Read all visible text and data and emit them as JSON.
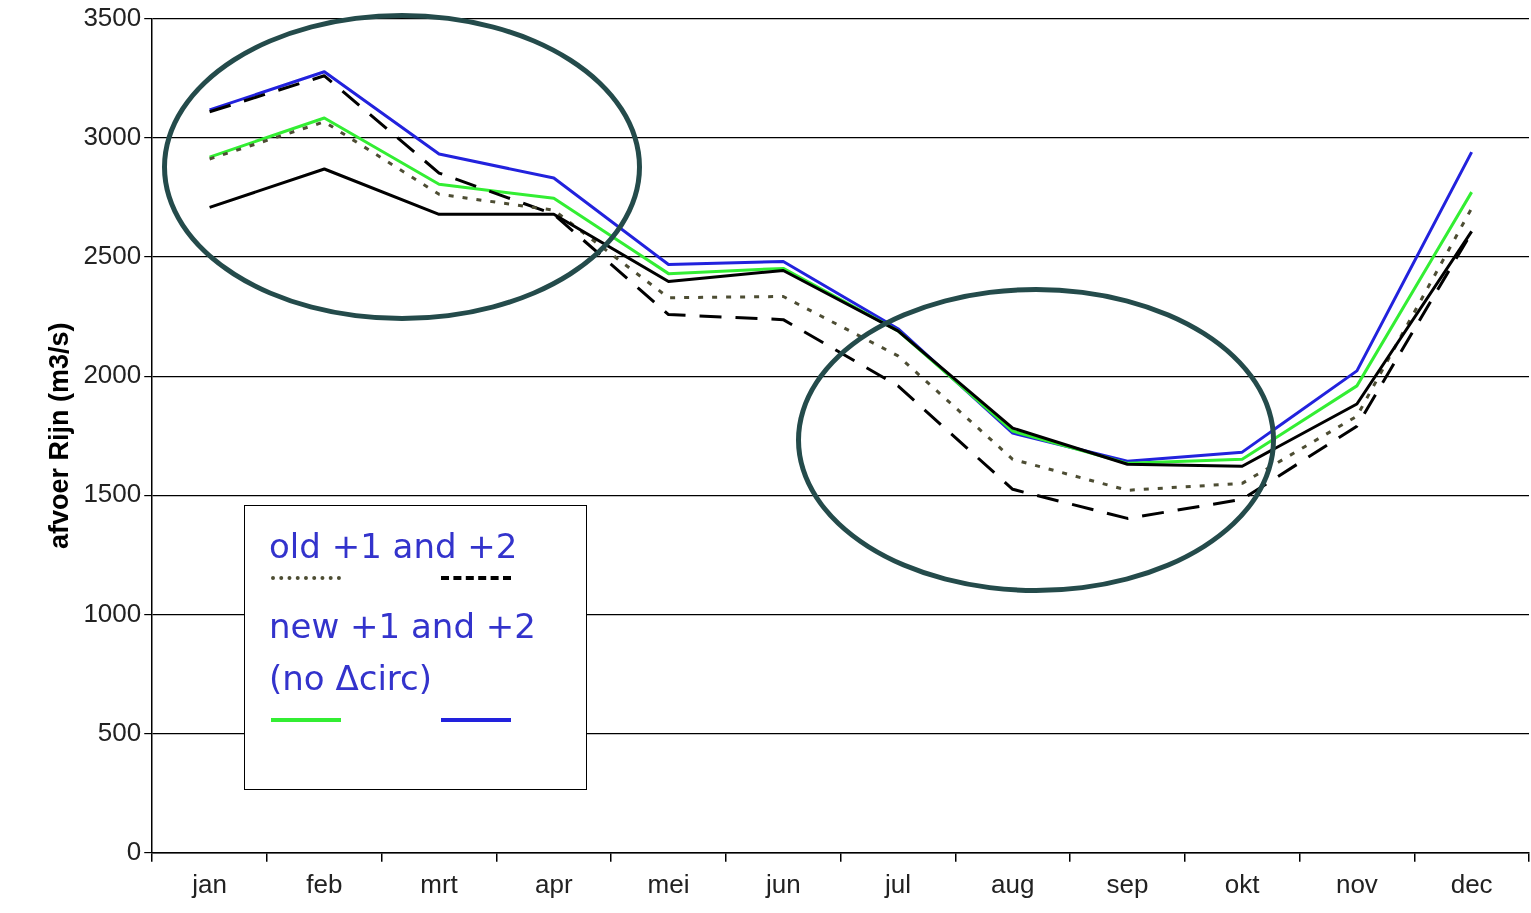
{
  "chart_data": {
    "type": "line",
    "ylabel": "afvoer Rijn (m3/s)",
    "categories": [
      "jan",
      "feb",
      "mrt",
      "apr",
      "mei",
      "jun",
      "jul",
      "aug",
      "sep",
      "okt",
      "nov",
      "dec"
    ],
    "ylim": [
      0,
      3500
    ],
    "yticks": [
      0,
      500,
      1000,
      1500,
      2000,
      2500,
      3000,
      3500
    ],
    "grid": "y",
    "marker": "none",
    "series": [
      {
        "color": "#000000",
        "line_style": "solid",
        "values": [
          2708,
          2869,
          2679,
          2679,
          2397,
          2443,
          2190,
          1782,
          1630,
          1622,
          1883,
          2607
        ]
      },
      {
        "color": "#4d4d33",
        "line_style": "dotted",
        "values": [
          2911,
          3067,
          2763,
          2696,
          2329,
          2334,
          2085,
          1651,
          1521,
          1550,
          1832,
          2704
        ]
      },
      {
        "color": "#000000",
        "line_style": "dashed",
        "values": [
          3109,
          3260,
          2852,
          2679,
          2258,
          2237,
          1959,
          1525,
          1403,
          1483,
          1790,
          2603
        ]
      },
      {
        "color": "#33ee33",
        "line_style": "solid",
        "values": [
          2919,
          3083,
          2805,
          2746,
          2430,
          2452,
          2190,
          1769,
          1634,
          1651,
          1959,
          2772
        ]
      },
      {
        "color": "#2222dd",
        "line_style": "solid",
        "values": [
          3117,
          3277,
          2932,
          2831,
          2468,
          2481,
          2199,
          1761,
          1643,
          1681,
          2022,
          2940
        ]
      }
    ],
    "annotations": [
      "old +1 and +2",
      "new +1 and +2\n(no Δcirc)"
    ]
  }
}
